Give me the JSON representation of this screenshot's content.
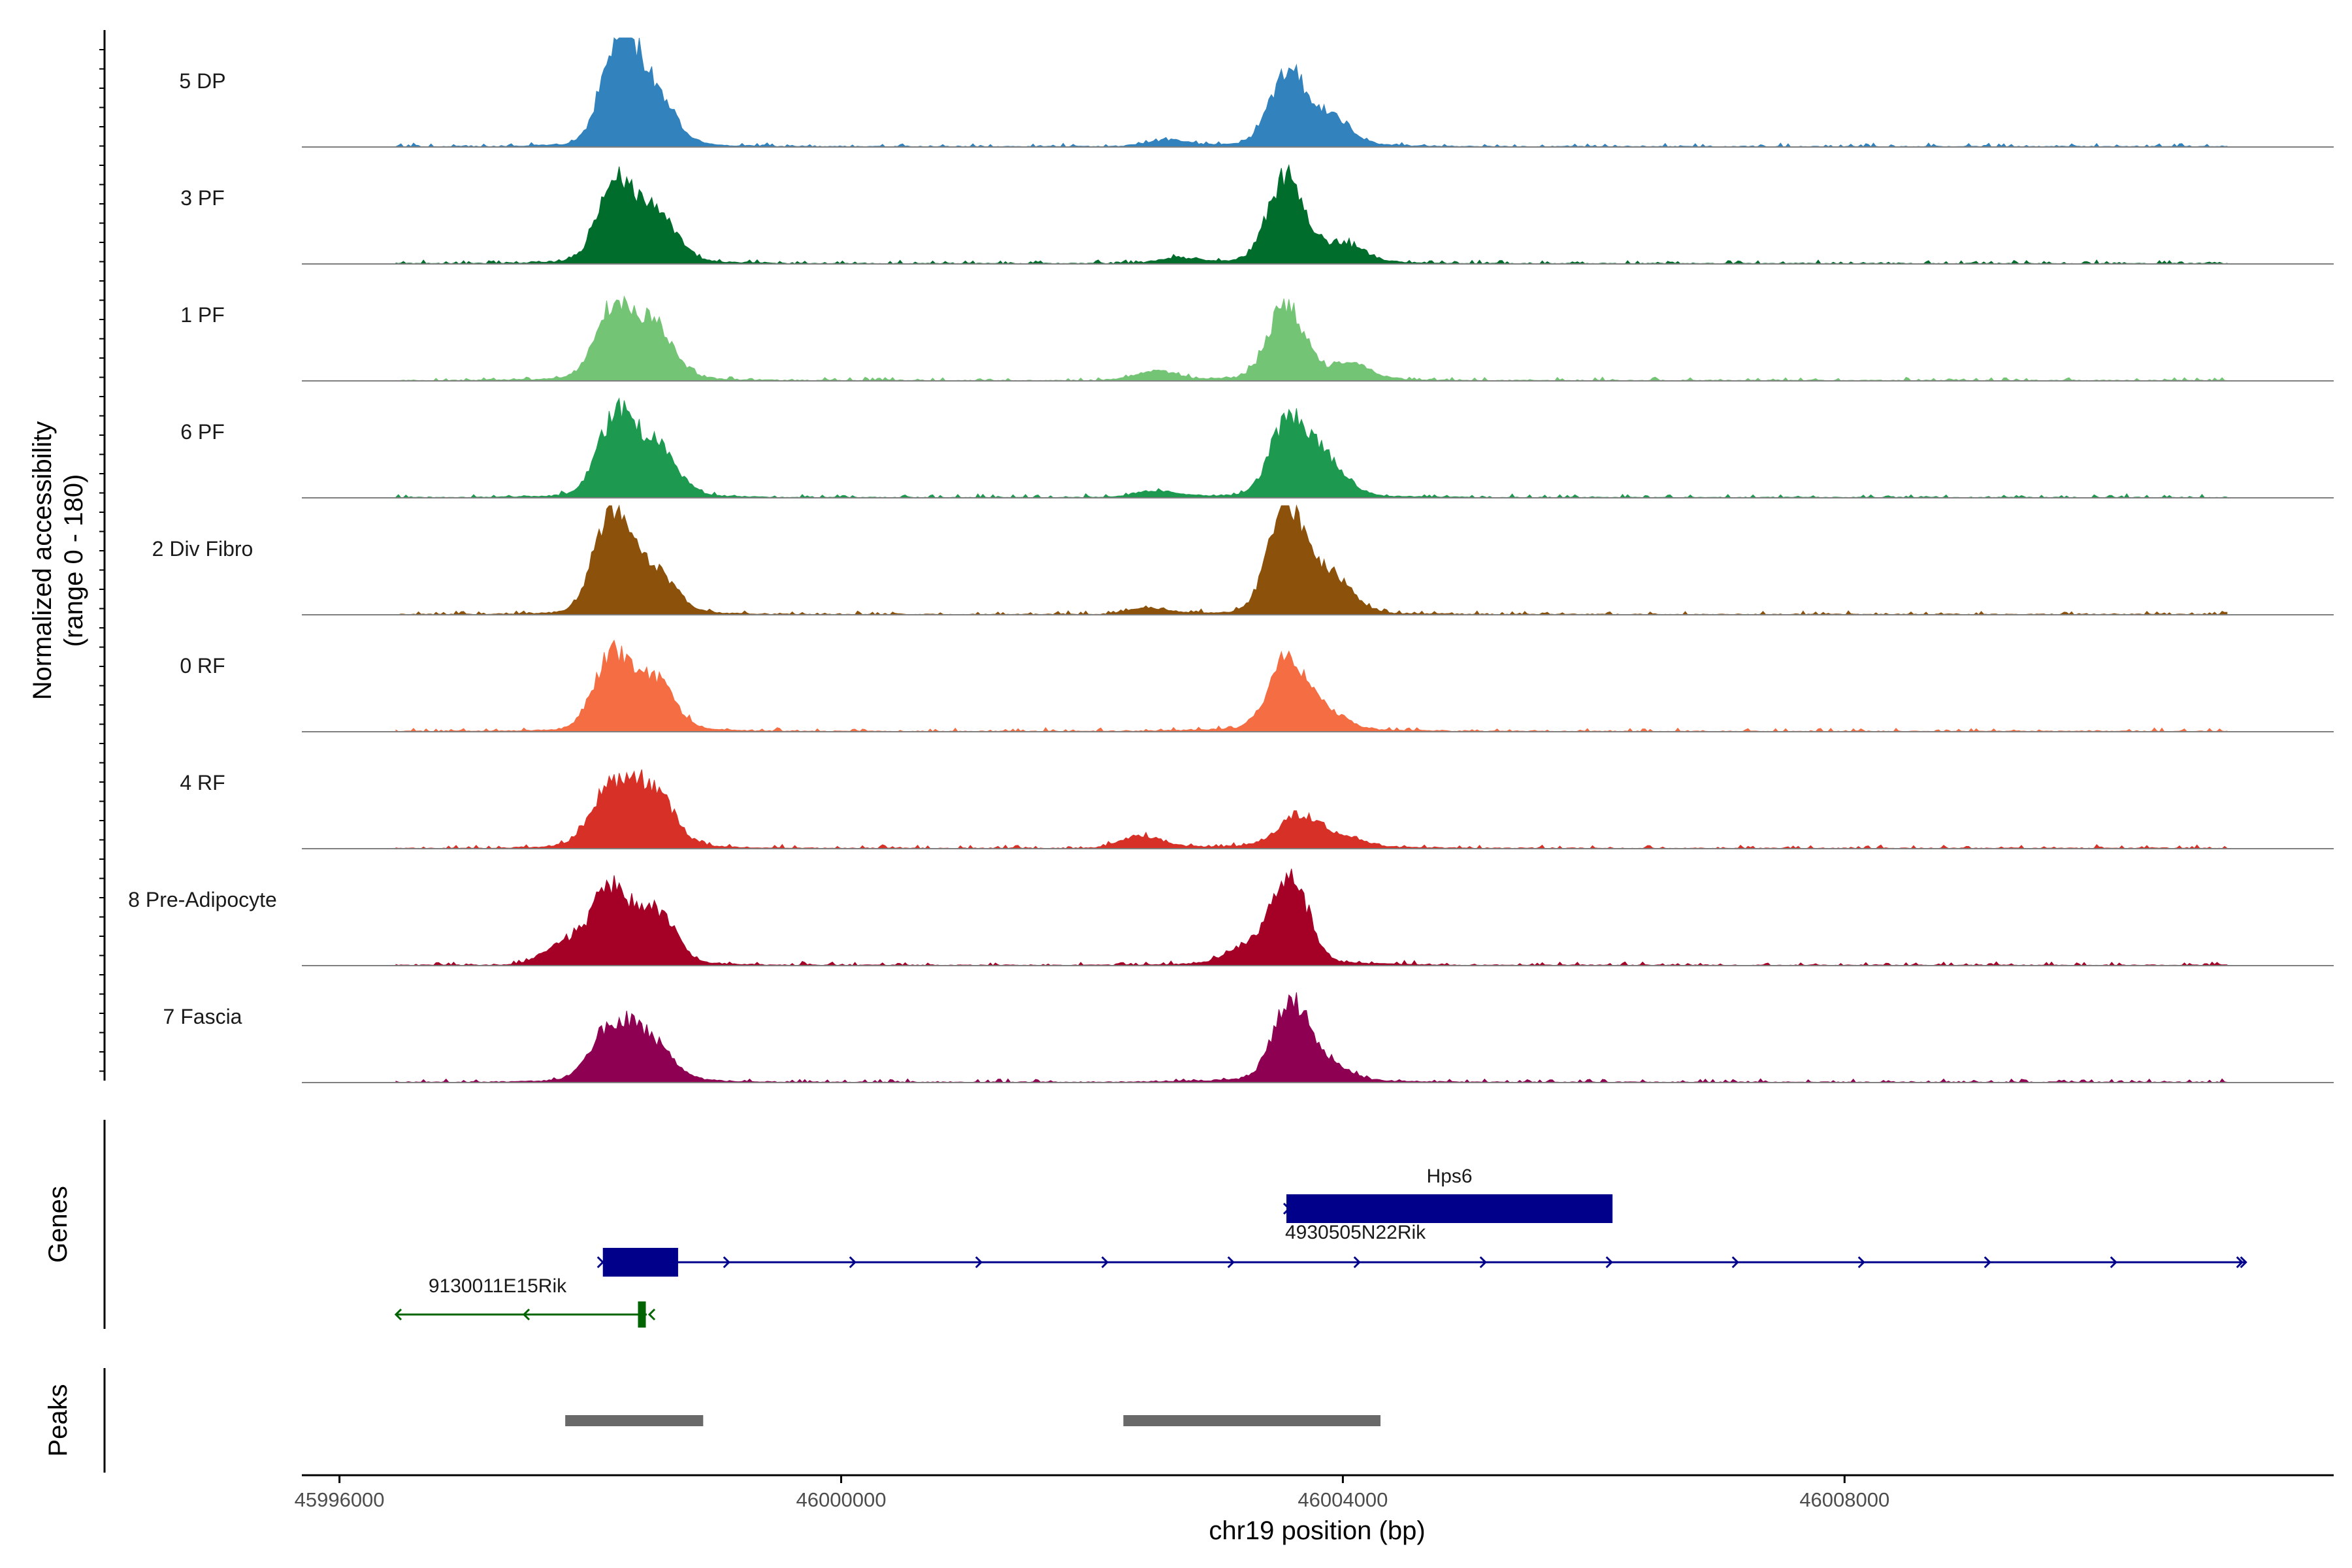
{
  "chart_data": {
    "type": "area",
    "chromosome": "chr19",
    "xlabel": "chr19 position (bp)",
    "ylabel": "Normalized accessibility",
    "ylabel_range": "(range 0 - 180)",
    "ylim": [
      0,
      180
    ],
    "xlim": [
      45995700,
      46011900
    ],
    "x_ticks": [
      45996000,
      46000000,
      46004000,
      46008000
    ],
    "x_tick_labels": [
      "45996000",
      "46000000",
      "46004000",
      "46008000"
    ],
    "tracks": [
      {
        "name": "5 DP",
        "color": "#3182BD",
        "peaks": [
          {
            "center": 45998230,
            "height": 165
          },
          {
            "center": 45998500,
            "height": 85
          },
          {
            "center": 46003560,
            "height": 115
          },
          {
            "center": 46003900,
            "height": 45
          },
          {
            "center": 46002600,
            "height": 10
          }
        ]
      },
      {
        "name": "3 PF",
        "color": "#006D2C",
        "peaks": [
          {
            "center": 45998200,
            "height": 125
          },
          {
            "center": 45998520,
            "height": 80
          },
          {
            "center": 46003550,
            "height": 140
          },
          {
            "center": 46004000,
            "height": 30
          },
          {
            "center": 46002700,
            "height": 8
          }
        ]
      },
      {
        "name": "1 PF",
        "color": "#74C476",
        "peaks": [
          {
            "center": 45998180,
            "height": 115
          },
          {
            "center": 45998500,
            "height": 85
          },
          {
            "center": 46003550,
            "height": 120
          },
          {
            "center": 46004050,
            "height": 25
          },
          {
            "center": 46002500,
            "height": 15
          }
        ]
      },
      {
        "name": "6 PF",
        "color": "#1D9A50",
        "peaks": [
          {
            "center": 45998200,
            "height": 125
          },
          {
            "center": 45998520,
            "height": 80
          },
          {
            "center": 46003560,
            "height": 115
          },
          {
            "center": 46003850,
            "height": 60
          },
          {
            "center": 46002500,
            "height": 10
          }
        ]
      },
      {
        "name": "2 Div Fibro",
        "color": "#8C510A",
        "peaks": [
          {
            "center": 45998170,
            "height": 165
          },
          {
            "center": 45998500,
            "height": 70
          },
          {
            "center": 46003550,
            "height": 175
          },
          {
            "center": 46003900,
            "height": 60
          },
          {
            "center": 46002450,
            "height": 10
          }
        ]
      },
      {
        "name": "0 RF",
        "color": "#F46D43",
        "peaks": [
          {
            "center": 45998170,
            "height": 115
          },
          {
            "center": 45998500,
            "height": 80
          },
          {
            "center": 46003550,
            "height": 115
          },
          {
            "center": 46003850,
            "height": 30
          }
        ]
      },
      {
        "name": "4 RF",
        "color": "#D73027",
        "peaks": [
          {
            "center": 45998170,
            "height": 95
          },
          {
            "center": 45998500,
            "height": 90
          },
          {
            "center": 46003650,
            "height": 50
          },
          {
            "center": 46002400,
            "height": 20
          },
          {
            "center": 46004000,
            "height": 15
          }
        ]
      },
      {
        "name": "8 Pre-Adipocyte",
        "color": "#A50026",
        "peaks": [
          {
            "center": 45998150,
            "height": 115
          },
          {
            "center": 45998500,
            "height": 90
          },
          {
            "center": 46003580,
            "height": 145
          },
          {
            "center": 46003250,
            "height": 30
          },
          {
            "center": 45997800,
            "height": 35
          }
        ]
      },
      {
        "name": "7 Fascia",
        "color": "#8E0152",
        "peaks": [
          {
            "center": 45998180,
            "height": 85
          },
          {
            "center": 45998480,
            "height": 60
          },
          {
            "center": 46003580,
            "height": 120
          },
          {
            "center": 46003850,
            "height": 30
          }
        ]
      }
    ],
    "genes_track_label": "Genes",
    "genes": [
      {
        "name": "Hps6",
        "color": "#00008B",
        "start": 46003550,
        "end": 46006150,
        "strand": "+",
        "kind": "block"
      },
      {
        "name": "4930505N22Rik",
        "color": "#00008B",
        "start": 45998100,
        "end": 46011200,
        "strand": "+",
        "exon_start": 45998100,
        "exon_end": 45998700
      },
      {
        "name": "9130011E15Rik",
        "color": "#006400",
        "start": 45996450,
        "end": 45998450,
        "strand": "-",
        "exon_start": 45998380,
        "exon_end": 45998440
      }
    ],
    "peaks_track_label": "Peaks",
    "peak_regions": [
      {
        "start": 45997800,
        "end": 45998900,
        "color": "#696969"
      },
      {
        "start": 46002250,
        "end": 46004300,
        "color": "#696969"
      }
    ]
  }
}
